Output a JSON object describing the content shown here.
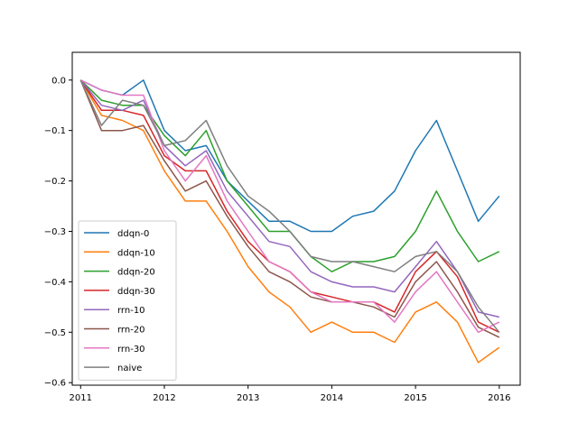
{
  "chart_data": {
    "type": "line",
    "title": "",
    "xlabel": "",
    "ylabel": "",
    "xlim": [
      2010.9,
      2016.25
    ],
    "ylim": [
      -0.605,
      0.055
    ],
    "x_ticks": [
      2011,
      2012,
      2013,
      2014,
      2015,
      2016
    ],
    "x_tick_labels": [
      "2011",
      "2012",
      "2013",
      "2014",
      "2015",
      "2016"
    ],
    "y_ticks": [
      0.0,
      -0.1,
      -0.2,
      -0.3,
      -0.4,
      -0.5,
      -0.6
    ],
    "y_tick_labels": [
      "0.0",
      "−0.1",
      "−0.2",
      "−0.3",
      "−0.4",
      "−0.5",
      "−0.6"
    ],
    "grid": false,
    "legend_position": "lower-left",
    "x": [
      2011.0,
      2011.25,
      2011.5,
      2011.75,
      2012.0,
      2012.25,
      2012.5,
      2012.75,
      2013.0,
      2013.25,
      2013.5,
      2013.75,
      2014.0,
      2014.25,
      2014.5,
      2014.75,
      2015.0,
      2015.25,
      2015.5,
      2015.75,
      2016.0
    ],
    "series": [
      {
        "name": "ddqn-0",
        "color": "#1f77b4",
        "values": [
          0.0,
          -0.02,
          -0.03,
          0.0,
          -0.1,
          -0.14,
          -0.13,
          -0.2,
          -0.24,
          -0.28,
          -0.28,
          -0.3,
          -0.3,
          -0.27,
          -0.26,
          -0.22,
          -0.14,
          -0.08,
          -0.18,
          -0.28,
          -0.23
        ]
      },
      {
        "name": "ddqn-10",
        "color": "#ff7f0e",
        "values": [
          0.0,
          -0.07,
          -0.08,
          -0.1,
          -0.18,
          -0.24,
          -0.24,
          -0.3,
          -0.37,
          -0.42,
          -0.45,
          -0.5,
          -0.48,
          -0.5,
          -0.5,
          -0.52,
          -0.46,
          -0.44,
          -0.48,
          -0.56,
          -0.53
        ]
      },
      {
        "name": "ddqn-20",
        "color": "#2ca02c",
        "values": [
          0.0,
          -0.04,
          -0.05,
          -0.05,
          -0.11,
          -0.15,
          -0.1,
          -0.2,
          -0.25,
          -0.3,
          -0.3,
          -0.35,
          -0.38,
          -0.36,
          -0.36,
          -0.35,
          -0.3,
          -0.22,
          -0.3,
          -0.36,
          -0.34
        ]
      },
      {
        "name": "ddqn-30",
        "color": "#d62728",
        "values": [
          0.0,
          -0.06,
          -0.06,
          -0.07,
          -0.15,
          -0.18,
          -0.18,
          -0.26,
          -0.32,
          -0.36,
          -0.38,
          -0.42,
          -0.43,
          -0.44,
          -0.44,
          -0.46,
          -0.38,
          -0.34,
          -0.39,
          -0.48,
          -0.5
        ]
      },
      {
        "name": "rrn-10",
        "color": "#9467bd",
        "values": [
          0.0,
          -0.05,
          -0.06,
          -0.04,
          -0.13,
          -0.17,
          -0.14,
          -0.22,
          -0.27,
          -0.32,
          -0.33,
          -0.38,
          -0.4,
          -0.41,
          -0.41,
          -0.42,
          -0.37,
          -0.32,
          -0.38,
          -0.46,
          -0.47
        ]
      },
      {
        "name": "rrn-20",
        "color": "#8c564b",
        "values": [
          0.0,
          -0.1,
          -0.1,
          -0.09,
          -0.16,
          -0.22,
          -0.2,
          -0.27,
          -0.33,
          -0.38,
          -0.4,
          -0.43,
          -0.44,
          -0.44,
          -0.45,
          -0.47,
          -0.4,
          -0.36,
          -0.42,
          -0.49,
          -0.51
        ]
      },
      {
        "name": "rrn-30",
        "color": "#e377c2",
        "values": [
          0.0,
          -0.02,
          -0.03,
          -0.03,
          -0.14,
          -0.2,
          -0.15,
          -0.24,
          -0.3,
          -0.36,
          -0.38,
          -0.42,
          -0.44,
          -0.44,
          -0.44,
          -0.48,
          -0.42,
          -0.38,
          -0.44,
          -0.5,
          -0.48
        ]
      },
      {
        "name": "naive",
        "color": "#7f7f7f",
        "values": [
          0.0,
          -0.09,
          -0.04,
          -0.05,
          -0.13,
          -0.12,
          -0.08,
          -0.17,
          -0.23,
          -0.26,
          -0.3,
          -0.35,
          -0.36,
          -0.36,
          -0.37,
          -0.38,
          -0.35,
          -0.34,
          -0.38,
          -0.45,
          -0.5
        ]
      }
    ]
  }
}
